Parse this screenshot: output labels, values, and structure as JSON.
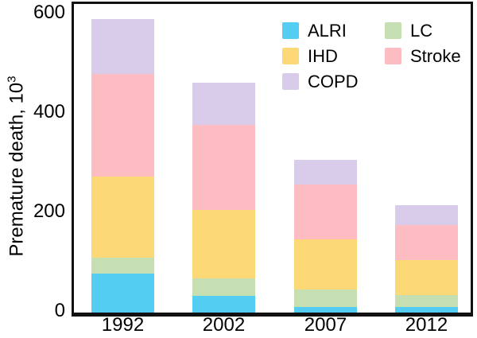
{
  "y_axis": {
    "title_main": "Premature death, 10",
    "title_sup": "3",
    "tick_values": [
      0,
      200,
      400,
      600
    ]
  },
  "x_axis": {
    "categories": [
      "1992",
      "2002",
      "2007",
      "2012"
    ]
  },
  "legend": {
    "columns": [
      [
        {
          "label": "ALRI",
          "color": "#53cef2"
        },
        {
          "label": "IHD",
          "color": "#fcd877"
        },
        {
          "label": "COPD",
          "color": "#d9cbea"
        }
      ],
      [
        {
          "label": "LC",
          "color": "#c5dfb3"
        },
        {
          "label": "Stroke",
          "color": "#fcbcc2"
        }
      ]
    ]
  },
  "chart_data": {
    "type": "bar",
    "stacked": true,
    "title": "",
    "xlabel": "",
    "ylabel": "Premature death, 10^3",
    "ylim": [
      0,
      600
    ],
    "grid": false,
    "legend_position": "upper-right-inside",
    "categories": [
      "1992",
      "2002",
      "2007",
      "2012"
    ],
    "stack_order_bottom_to_top": [
      "ALRI",
      "LC",
      "IHD",
      "Stroke",
      "COPD"
    ],
    "series": [
      {
        "name": "ALRI",
        "color": "#53cef2",
        "values": [
          78,
          33,
          11,
          12
        ]
      },
      {
        "name": "LC",
        "color": "#c5dfb3",
        "values": [
          33,
          36,
          35,
          24
        ]
      },
      {
        "name": "IHD",
        "color": "#fcd877",
        "values": [
          162,
          138,
          101,
          69
        ]
      },
      {
        "name": "Stroke",
        "color": "#fcbcc2",
        "values": [
          207,
          170,
          110,
          71
        ]
      },
      {
        "name": "COPD",
        "color": "#d9cbea",
        "values": [
          110,
          86,
          50,
          40
        ]
      }
    ],
    "stacked_totals": [
      590,
      463,
      307,
      216
    ]
  }
}
